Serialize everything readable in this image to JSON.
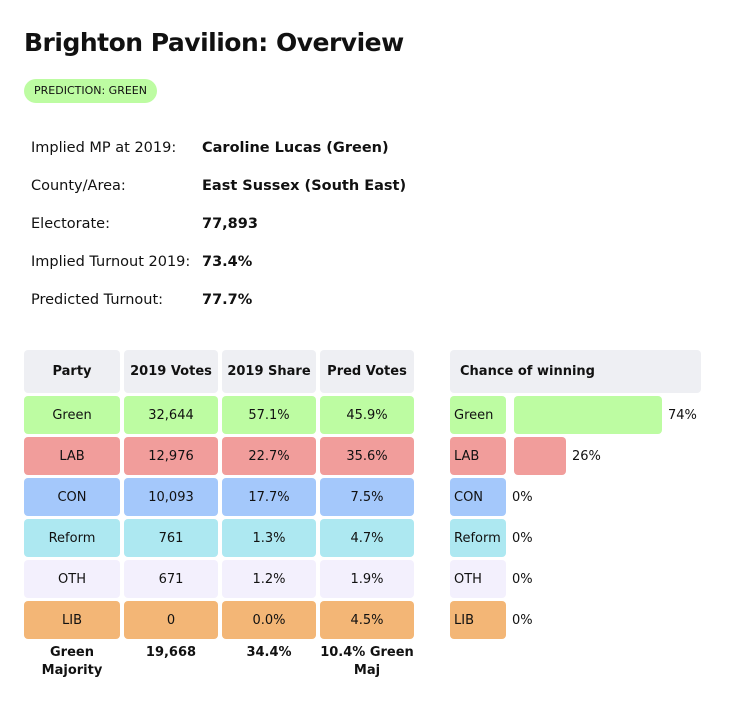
{
  "title": "Brighton Pavilion: Overview",
  "badge": "PREDICTION: GREEN",
  "info": [
    {
      "label": "Implied MP at 2019:",
      "value": "Caroline Lucas  (Green)"
    },
    {
      "label": "County/Area:",
      "value": "East Sussex (South East)"
    },
    {
      "label": "Electorate:",
      "value": "77,893"
    },
    {
      "label": "Implied Turnout 2019:",
      "value": "73.4%"
    },
    {
      "label": "Predicted Turnout:",
      "value": "77.7%"
    }
  ],
  "table": {
    "headers": [
      "Party",
      "2019 Votes",
      "2019 Share",
      "Pred Votes"
    ],
    "rows": [
      {
        "party": "Green",
        "votes": "32,644",
        "share": "57.1%",
        "pred": "45.9%",
        "color": "#bdfca2"
      },
      {
        "party": "LAB",
        "votes": "12,976",
        "share": "22.7%",
        "pred": "35.6%",
        "color": "#f19d9b"
      },
      {
        "party": "CON",
        "votes": "10,093",
        "share": "17.7%",
        "pred": "7.5%",
        "color": "#a4c8fb"
      },
      {
        "party": "Reform",
        "votes": "761",
        "share": "1.3%",
        "pred": "4.7%",
        "color": "#ade8f1"
      },
      {
        "party": "OTH",
        "votes": "671",
        "share": "1.2%",
        "pred": "1.9%",
        "color": "#f3f0fd"
      },
      {
        "party": "LIB",
        "votes": "0",
        "share": "0.0%",
        "pred": "4.5%",
        "color": "#f3b676"
      }
    ],
    "footer": [
      "Green Majority",
      "19,668",
      "34.4%",
      "10.4% Green Maj"
    ]
  },
  "chance": {
    "title": "Chance of winning",
    "rows": [
      {
        "party": "Green",
        "pct": 74,
        "label": "74%",
        "color": "#bdfca2"
      },
      {
        "party": "LAB",
        "pct": 26,
        "label": "26%",
        "color": "#f19d9b"
      },
      {
        "party": "CON",
        "pct": 0,
        "label": "0%",
        "color": "#a4c8fb"
      },
      {
        "party": "Reform",
        "pct": 0,
        "label": "0%",
        "color": "#ade8f1"
      },
      {
        "party": "OTH",
        "pct": 0,
        "label": "0%",
        "color": "#f3f0fd"
      },
      {
        "party": "LIB",
        "pct": 0,
        "label": "0%",
        "color": "#f3b676"
      }
    ]
  }
}
